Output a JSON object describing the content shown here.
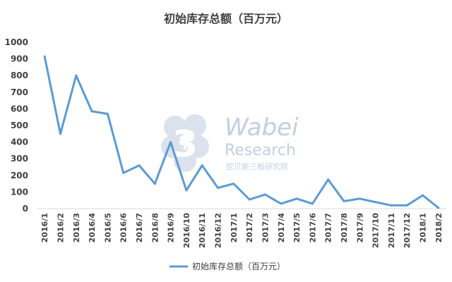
{
  "chart_data": {
    "type": "line",
    "title": "初始库存总额（百万元）",
    "xlabel": "",
    "ylabel": "",
    "ylim": [
      0,
      1000
    ],
    "yticks": [
      0,
      100,
      200,
      300,
      400,
      500,
      600,
      700,
      800,
      900,
      1000
    ],
    "grid": false,
    "legend_position": "bottom",
    "categories": [
      "2016/1",
      "2016/2",
      "2016/3",
      "2016/4",
      "2016/5",
      "2016/6",
      "2016/7",
      "2016/8",
      "2016/9",
      "2016/10",
      "2016/11",
      "2016/12",
      "2017/1",
      "2017/2",
      "2017/3",
      "2017/4",
      "2017/5",
      "2017/6",
      "2017/7",
      "2017/8",
      "2017/9",
      "2017/10",
      "2017/11",
      "2017/12",
      "2018/1",
      "2018/2"
    ],
    "series": [
      {
        "name": "初始库存总额（百万元）",
        "color": "#5b9bd5",
        "values": [
          915,
          450,
          800,
          585,
          570,
          215,
          260,
          150,
          400,
          110,
          260,
          125,
          150,
          55,
          85,
          30,
          60,
          30,
          175,
          45,
          60,
          40,
          20,
          20,
          80,
          5
        ]
      }
    ]
  },
  "watermark": {
    "logo_icon": "flower-3-logo-icon",
    "brand": "Wabei",
    "sub": "Research",
    "cn": "挖贝新三板研究院"
  }
}
